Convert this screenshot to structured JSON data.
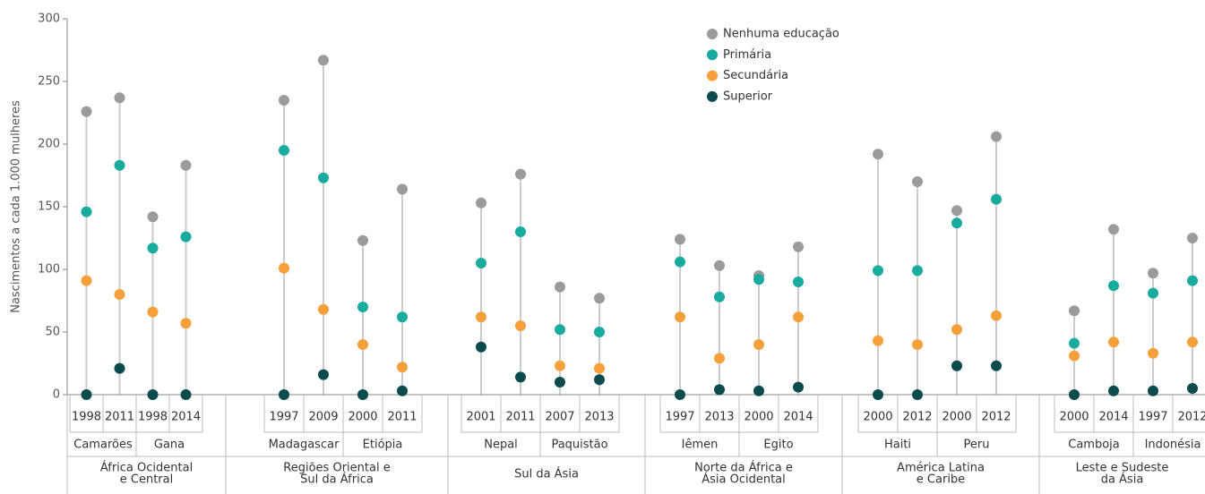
{
  "chart_data": {
    "type": "dot",
    "y_label": "Nascimentos a cada 1.000 mulheres",
    "ylim": [
      0,
      300
    ],
    "yticks": [
      0,
      50,
      100,
      150,
      200,
      250,
      300
    ],
    "categories": [
      "1998",
      "2011",
      "1998",
      "2014",
      "1997",
      "2009",
      "2000",
      "2011",
      "2001",
      "2011",
      "2007",
      "2013",
      "1997",
      "2013",
      "2000",
      "2014",
      "2000",
      "2012",
      "2000",
      "2012",
      "2000",
      "2014",
      "1997",
      "2012"
    ],
    "countries": [
      "Camarões",
      "Gana",
      "Madagascar",
      "Etiópia",
      "Nepal",
      "Paquistão",
      "Iêmen",
      "Egito",
      "Haiti",
      "Peru",
      "Camboja",
      "Indonésia"
    ],
    "regions": [
      [
        "África Ocidental",
        "e Central"
      ],
      [
        "Regiões Oriental e",
        "Sul da África"
      ],
      [
        "Sul da Ásia"
      ],
      [
        "Norte da África e",
        "Ásia Ocidental"
      ],
      [
        "América Latina",
        "e Caribe"
      ],
      [
        "Leste e Sudeste",
        "da Ásia"
      ]
    ],
    "series": [
      {
        "name": "Nenhuma educação",
        "color": "#9b9b9b",
        "values": [
          226,
          237,
          142,
          183,
          235,
          267,
          123,
          164,
          153,
          176,
          86,
          77,
          124,
          103,
          95,
          118,
          192,
          170,
          147,
          206,
          67,
          132,
          97,
          125
        ]
      },
      {
        "name": "Primária",
        "color": "#1aab9f",
        "values": [
          146,
          183,
          117,
          126,
          195,
          173,
          70,
          62,
          105,
          130,
          52,
          50,
          106,
          78,
          92,
          90,
          99,
          99,
          137,
          156,
          41,
          87,
          81,
          91
        ]
      },
      {
        "name": "Secundária",
        "color": "#f5a03a",
        "values": [
          91,
          80,
          66,
          57,
          101,
          68,
          40,
          22,
          62,
          55,
          23,
          21,
          62,
          29,
          40,
          62,
          43,
          40,
          52,
          63,
          31,
          42,
          33,
          42
        ]
      },
      {
        "name": "Superior",
        "color": "#0b4b4d",
        "values": [
          0,
          21,
          0,
          0,
          0,
          16,
          0,
          3,
          38,
          14,
          10,
          12,
          0,
          4,
          3,
          6,
          0,
          0,
          23,
          23,
          0,
          3,
          3,
          5
        ]
      }
    ]
  }
}
